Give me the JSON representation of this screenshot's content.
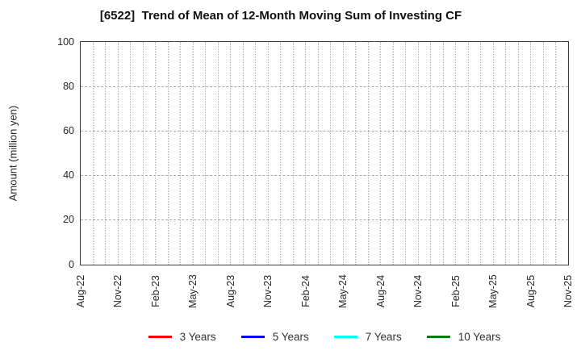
{
  "figure": {
    "title": "[6522]  Trend of Mean of 12-Month Moving Sum of Investing CF"
  },
  "chart_data": {
    "type": "line",
    "title": "[6522]  Trend of Mean of 12-Month Moving Sum of Investing CF",
    "xlabel": "",
    "ylabel": "Amount (million yen)",
    "ylim": [
      0,
      100
    ],
    "yticks": [
      0,
      20,
      40,
      60,
      80,
      100
    ],
    "y_tick_labels": [
      "0",
      "20",
      "40",
      "60",
      "80",
      "100"
    ],
    "x_tick_labels": [
      "Aug-22",
      "Nov-22",
      "Feb-23",
      "May-23",
      "Aug-23",
      "Nov-23",
      "Feb-24",
      "May-24",
      "Aug-24",
      "Nov-24",
      "Feb-25",
      "May-25",
      "Aug-25",
      "Nov-25"
    ],
    "months_per_labeled_tick": 3,
    "total_month_intervals": 39,
    "grid": true,
    "grid_style": "dotted",
    "legend_position": "bottom",
    "series": [
      {
        "name": "3 Years",
        "color": "#ff0000",
        "values": []
      },
      {
        "name": "5 Years",
        "color": "#0000ff",
        "values": []
      },
      {
        "name": "7 Years",
        "color": "#00ffff",
        "values": []
      },
      {
        "name": "10 Years",
        "color": "#008000",
        "values": []
      }
    ]
  },
  "colors": {
    "spine": "#3a3a3a",
    "grid": "#b9b9b9",
    "tick_text": "#262626",
    "title_text": "#111111"
  }
}
